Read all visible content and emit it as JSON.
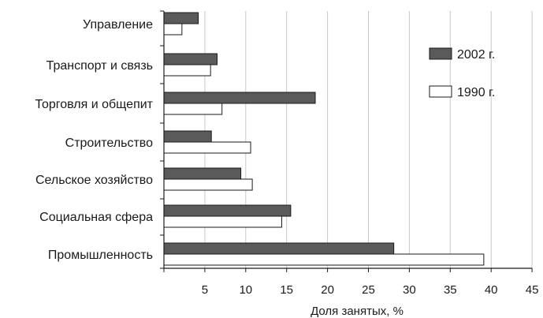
{
  "chart_data": {
    "type": "bar",
    "orientation": "horizontal",
    "categories": [
      "Управление",
      "Транспорт и связь",
      "Торговля и общепит",
      "Строительство",
      "Сельское хозяйство",
      "Социальная сфера",
      "Промышленность"
    ],
    "series": [
      {
        "name": "2002 г.",
        "values": [
          4.2,
          6.5,
          18.5,
          5.8,
          9.4,
          15.5,
          28.1
        ],
        "color": "#5a5a5a"
      },
      {
        "name": "1990 г.",
        "values": [
          2.2,
          5.7,
          7.1,
          10.6,
          10.8,
          14.4,
          39.1
        ],
        "color": "#ffffff"
      }
    ],
    "xlabel": "Доля занятых, %",
    "ylabel": "",
    "xlim": [
      0,
      45
    ],
    "xticks": [
      5,
      10,
      15,
      20,
      25,
      30,
      35,
      40,
      45
    ],
    "grid": "vertical",
    "legend_position": "right"
  }
}
